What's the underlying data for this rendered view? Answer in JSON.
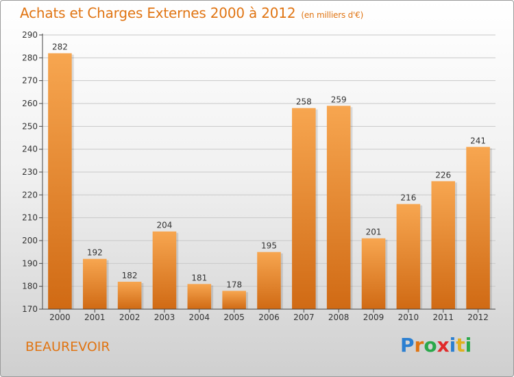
{
  "title": "Achats et Charges Externes 2000 à 2012",
  "subtitle": "(en milliers d'€)",
  "footer_location": "BEAUREVOIR",
  "logo": {
    "text": "Proxiti",
    "letters": [
      {
        "ch": "P",
        "color": "#2b7fd1"
      },
      {
        "ch": "r",
        "color": "#e07412"
      },
      {
        "ch": "o",
        "color": "#2aa84a"
      },
      {
        "ch": "x",
        "color": "#e02a2a"
      },
      {
        "ch": "i",
        "color": "#2b7fd1"
      },
      {
        "ch": "t",
        "color": "#e0b020"
      },
      {
        "ch": "i",
        "color": "#2aa84a"
      }
    ]
  },
  "colors": {
    "bar_light": "#f7a650",
    "bar_dark": "#d06a14",
    "accent": "#e07412",
    "grid": "#c8c8c8"
  },
  "chart_data": {
    "type": "bar",
    "categories": [
      "2000",
      "2001",
      "2002",
      "2003",
      "2004",
      "2005",
      "2006",
      "2007",
      "2008",
      "2009",
      "2010",
      "2011",
      "2012"
    ],
    "values": [
      282,
      192,
      182,
      204,
      181,
      178,
      195,
      258,
      259,
      201,
      216,
      226,
      241
    ],
    "ylim": [
      170,
      290
    ],
    "yticks": [
      170,
      180,
      190,
      200,
      210,
      220,
      230,
      240,
      250,
      260,
      270,
      280,
      290
    ],
    "grid": true,
    "title": "Achats et Charges Externes 2000 à 2012",
    "xlabel": "",
    "ylabel": ""
  }
}
